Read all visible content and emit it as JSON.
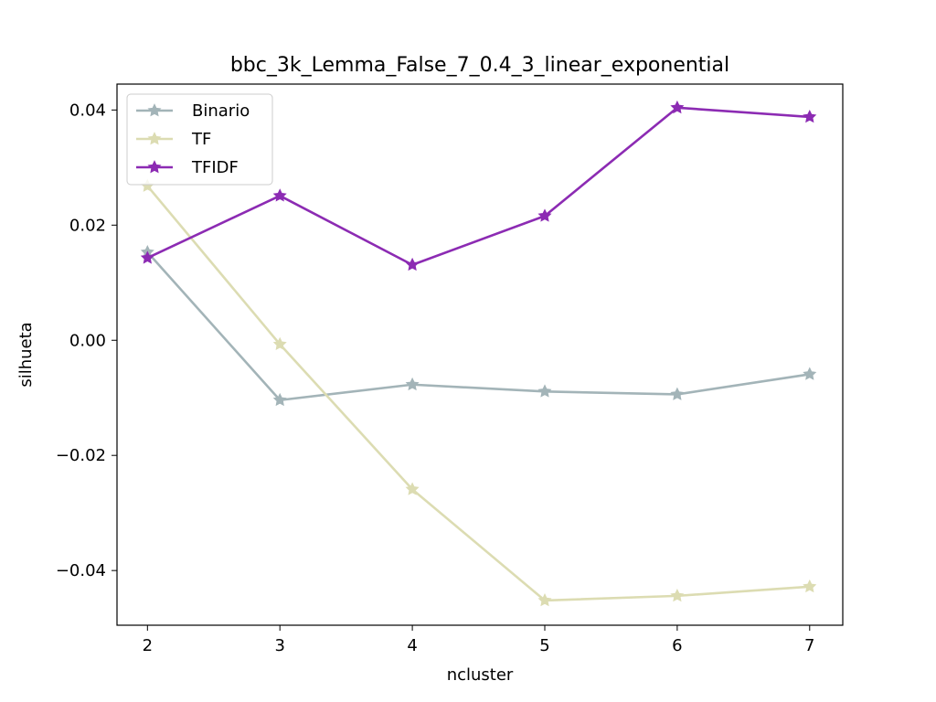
{
  "chart_data": {
    "type": "line",
    "title": "bbc_3k_Lemma_False_7_0.4_3_linear_exponential",
    "xlabel": "ncluster",
    "ylabel": "silhueta",
    "x": [
      2,
      3,
      4,
      5,
      6,
      7
    ],
    "xlim": [
      1.77,
      7.25
    ],
    "ylim": [
      -0.0495,
      0.0445
    ],
    "xticks": [
      2,
      3,
      4,
      5,
      6,
      7
    ],
    "xtick_labels": [
      "2",
      "3",
      "4",
      "5",
      "6",
      "7"
    ],
    "yticks": [
      -0.04,
      -0.02,
      0.0,
      0.02,
      0.04
    ],
    "ytick_labels": [
      "−0.04",
      "−0.02",
      "0.00",
      "0.02",
      "0.04"
    ],
    "legend_position": "top-left",
    "grid": false,
    "marker": "star",
    "series": [
      {
        "name": "Binario",
        "color": "#a3b4b8",
        "values": [
          0.0153,
          -0.0104,
          -0.0077,
          -0.0089,
          -0.0094,
          -0.0059
        ]
      },
      {
        "name": "TF",
        "color": "#dcdcb2",
        "values": [
          0.0268,
          -0.0007,
          -0.0259,
          -0.0452,
          -0.0444,
          -0.0428
        ]
      },
      {
        "name": "TFIDF",
        "color": "#8c2bb3",
        "values": [
          0.0143,
          0.0251,
          0.0131,
          0.0216,
          0.0404,
          0.0388
        ]
      }
    ]
  }
}
